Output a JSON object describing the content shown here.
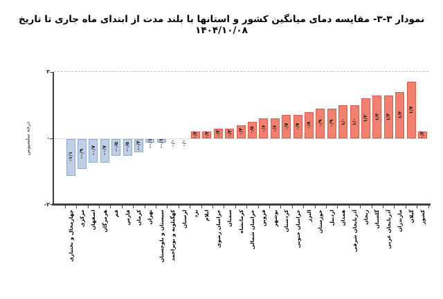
{
  "title": "نمودار ۳-۳- مقایسه دمای میانگین کشور و استانها با بلند مدت از ابتدای ماه جاری تا تاریخ ۱۴۰۴/۱۰/۰۸",
  "chart_data": {
    "type": "bar",
    "title": "نمودار ۳-۳- مقایسه دمای میانگین کشور و استانها با بلند مدت از ابتدای ماه جاری تا تاریخ ۱۴۰۴/۱۰/۰۸",
    "ylabel": "درجه سلسیوس",
    "xlabel": "",
    "ylim": [
      -2,
      2
    ],
    "grid": "dashed gridline at y=2, light solid line at y=0",
    "legend": "none",
    "y_ticks": [
      {
        "value": 2,
        "label": "۲"
      },
      {
        "value": 0,
        "label": "۰"
      },
      {
        "value": -2,
        "label": "-۲"
      }
    ],
    "colors": {
      "positive_fill": "#F1806E",
      "positive_border": "#D95F4C",
      "negative_fill": "#BDD0E8",
      "negative_border": "#8EA9CA",
      "axis": "#3F3F3F",
      "gridline": "#BFBFBF",
      "zero_line": "#DCDCDC",
      "text": "#000000"
    },
    "points": [
      {
        "name": "چهارمحال و بختیاری",
        "value": -1.1,
        "label": "-۱/۱"
      },
      {
        "name": "مرکزی",
        "value": -0.9,
        "label": "-۰/۹"
      },
      {
        "name": "اصفهان",
        "value": -0.7,
        "label": "-۰/۷"
      },
      {
        "name": "هرمزگان",
        "value": -0.7,
        "label": "-۰/۷"
      },
      {
        "name": "قم",
        "value": -0.5,
        "label": "-۰/۵"
      },
      {
        "name": "فارس",
        "value": -0.5,
        "label": "-۰/۵"
      },
      {
        "name": "کرمان",
        "value": -0.4,
        "label": "-۰/۴"
      },
      {
        "name": "تهران",
        "value": -0.1,
        "label": "-۰/۱"
      },
      {
        "name": "سیستان و بلوچستان",
        "value": -0.1,
        "label": "-۰/۱"
      },
      {
        "name": "کهگیلویه و بویراحمد",
        "value": 0.0,
        "label": "۰/۰"
      },
      {
        "name": "لرستان",
        "value": 0.0,
        "label": "۰/۰"
      },
      {
        "name": "یزد",
        "value": 0.2,
        "label": "۰/۲"
      },
      {
        "name": "ایلام",
        "value": 0.2,
        "label": "۰/۲"
      },
      {
        "name": "خراسان رضوی",
        "value": 0.3,
        "label": "۰/۳"
      },
      {
        "name": "سمنان",
        "value": 0.3,
        "label": "۰/۳"
      },
      {
        "name": "کرمانشاه",
        "value": 0.4,
        "label": "۰/۴"
      },
      {
        "name": "خراسان شمالی",
        "value": 0.5,
        "label": "۰/۵"
      },
      {
        "name": "قزوین",
        "value": 0.6,
        "label": "۰/۶"
      },
      {
        "name": "بوشهر",
        "value": 0.6,
        "label": "۰/۶"
      },
      {
        "name": "کردستان",
        "value": 0.7,
        "label": "۰/۷"
      },
      {
        "name": "خراسان جنوبی",
        "value": 0.7,
        "label": "۰/۷"
      },
      {
        "name": "البرز",
        "value": 0.8,
        "label": "۰/۸"
      },
      {
        "name": "خوزستان",
        "value": 0.9,
        "label": "۰/۹"
      },
      {
        "name": "اردبیل",
        "value": 0.9,
        "label": "۰/۹"
      },
      {
        "name": "همدان",
        "value": 1.0,
        "label": "۱/۰"
      },
      {
        "name": "آذربایجان شرقی",
        "value": 1.0,
        "label": "۱/۰"
      },
      {
        "name": "زنجان",
        "value": 1.2,
        "label": "۱/۲"
      },
      {
        "name": "گلستان",
        "value": 1.3,
        "label": "۱/۳"
      },
      {
        "name": "آذربایجان غربی",
        "value": 1.3,
        "label": "۱/۳"
      },
      {
        "name": "مازندران",
        "value": 1.4,
        "label": "۱/۴"
      },
      {
        "name": "گیلان",
        "value": 1.7,
        "label": "۱/۷"
      },
      {
        "name": "کشور",
        "value": 0.2,
        "label": "۰/۲"
      }
    ]
  }
}
